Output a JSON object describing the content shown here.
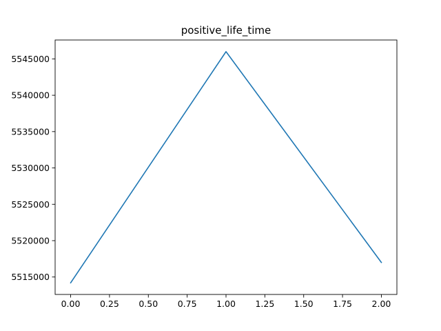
{
  "chart_data": {
    "type": "line",
    "title": "positive_life_time",
    "xlabel": "",
    "ylabel": "",
    "x": [
      0,
      1,
      2
    ],
    "series": [
      {
        "values": [
          5514200,
          5546000,
          5517000
        ],
        "color": "#1f77b4"
      }
    ],
    "xlim": [
      -0.1,
      2.1
    ],
    "ylim": [
      5512600,
      5547600
    ],
    "xticks": [
      0.0,
      0.25,
      0.5,
      0.75,
      1.0,
      1.25,
      1.5,
      1.75,
      2.0
    ],
    "xtick_labels": [
      "0.00",
      "0.25",
      "0.50",
      "0.75",
      "1.00",
      "1.25",
      "1.50",
      "1.75",
      "2.00"
    ],
    "yticks": [
      5515000,
      5520000,
      5525000,
      5530000,
      5535000,
      5540000,
      5545000
    ],
    "ytick_labels": [
      "5515000",
      "5520000",
      "5525000",
      "5530000",
      "5535000",
      "5540000",
      "5545000"
    ],
    "grid": false,
    "legend": "none"
  }
}
